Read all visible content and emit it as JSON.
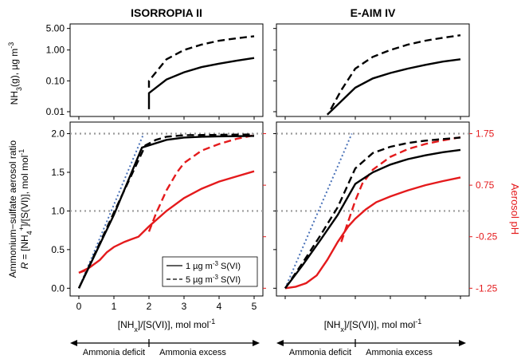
{
  "chart_data": [
    {
      "panel": "top-left",
      "type": "line",
      "title": "ISORROPIA II",
      "ylabel": "NH3(g), µg m-3",
      "yscale": "log",
      "xlim": [
        -0.25,
        5.25
      ],
      "ylim": [
        0.007,
        7
      ],
      "yticks": [
        "5.00",
        "1.00",
        "0.10",
        "0.01"
      ],
      "series": [
        {
          "name": "1 µg m-3 S(VI)",
          "style": "solid",
          "x": [
            2.0,
            2.0,
            2.5,
            3.0,
            3.5,
            4.0,
            4.5,
            5.0
          ],
          "y": [
            0.012,
            0.04,
            0.11,
            0.19,
            0.28,
            0.36,
            0.45,
            0.55
          ]
        },
        {
          "name": "5 µg m-3 S(VI)",
          "style": "dashed",
          "x": [
            2.0,
            2.0,
            2.5,
            3.0,
            3.5,
            4.0,
            4.5,
            5.0
          ],
          "y": [
            0.06,
            0.1,
            0.5,
            1.0,
            1.5,
            2.0,
            2.4,
            2.8
          ]
        }
      ]
    },
    {
      "panel": "top-right",
      "type": "line",
      "title": "E-AIM IV",
      "yscale": "log",
      "xlim": [
        -0.25,
        5.25
      ],
      "ylim": [
        0.007,
        7
      ],
      "series": [
        {
          "name": "1 µg m-3 S(VI)",
          "style": "solid",
          "x": [
            1.2,
            1.5,
            2.0,
            2.5,
            3.0,
            3.5,
            4.0,
            4.5,
            5.0
          ],
          "y": [
            0.008,
            0.017,
            0.06,
            0.12,
            0.18,
            0.25,
            0.33,
            0.42,
            0.5
          ]
        },
        {
          "name": "5 µg m-3 S(VI)",
          "style": "dashed",
          "x": [
            1.3,
            1.6,
            2.0,
            2.5,
            3.0,
            3.5,
            4.0,
            4.5,
            5.0
          ],
          "y": [
            0.012,
            0.05,
            0.25,
            0.6,
            1.0,
            1.5,
            2.0,
            2.5,
            3.0
          ]
        }
      ]
    },
    {
      "panel": "bottom-left",
      "type": "line",
      "xlabel": "[NHx]/[S(VI)], mol mol-1",
      "ylabel": "Ammonium-sulfate aerosol ratio R = [NH4+]/[S(VI)], mol mol-1",
      "xlim": [
        -0.25,
        5.25
      ],
      "ylim": [
        -0.1,
        2.15
      ],
      "xticks": [
        "0",
        "1",
        "2",
        "3",
        "4",
        "5"
      ],
      "yticks": [
        "0.0",
        "0.5",
        "1.0",
        "1.5",
        "2.0"
      ],
      "reference_lines": [
        1.0,
        2.0
      ],
      "ideal_line": {
        "x": [
          0,
          1.85
        ],
        "y": [
          0,
          2.0
        ]
      },
      "series": [
        {
          "name": "1 µg m-3 S(VI)",
          "style": "solid",
          "color": "#000000",
          "x": [
            0,
            1.0,
            1.8,
            2.5,
            3.0,
            3.5,
            4.0,
            5.0
          ],
          "y": [
            0,
            0.95,
            1.82,
            1.92,
            1.95,
            1.96,
            1.965,
            1.97
          ]
        },
        {
          "name": "5 µg m-3 S(VI)",
          "style": "dashed",
          "color": "#000000",
          "x": [
            0,
            1.0,
            1.9,
            2.2,
            2.5,
            3.0,
            4.0,
            5.0
          ],
          "y": [
            0,
            0.98,
            1.85,
            1.92,
            1.96,
            1.98,
            1.985,
            1.99
          ]
        }
      ],
      "pH_series": [
        {
          "name": "pH 1 µg m-3 S(VI)",
          "style": "solid",
          "color": "#e41a1c",
          "x": [
            0,
            0.3,
            0.6,
            0.8,
            1.0,
            1.3,
            1.5,
            1.7,
            2.0,
            2.5,
            3.0,
            3.5,
            4.0,
            4.5,
            5.0
          ],
          "y": [
            -0.95,
            -0.85,
            -0.7,
            -0.55,
            -0.45,
            -0.35,
            -0.3,
            -0.25,
            -0.05,
            0.25,
            0.5,
            0.68,
            0.82,
            0.92,
            1.02
          ]
        },
        {
          "name": "pH 5 µg m-3 S(VI)",
          "style": "dashed",
          "color": "#e41a1c",
          "x": [
            0,
            0.2,
            0.4
          ],
          "y": [
            -0.95,
            -0.9,
            -0.8
          ]
        },
        {
          "name": "pH 5 µg m-3 S(VI) upper",
          "style": "dashed",
          "color": "#e41a1c",
          "x": [
            2.0,
            2.2,
            2.5,
            2.8,
            3.0,
            3.5,
            4.0,
            4.5,
            5.0
          ],
          "y": [
            -0.15,
            0.2,
            0.65,
            1.0,
            1.18,
            1.42,
            1.55,
            1.65,
            1.72
          ]
        }
      ],
      "legend": [
        "1 µg m-3 S(VI)",
        "5 µg m-3 S(VI)"
      ],
      "legend_position": "bottom-right"
    },
    {
      "panel": "bottom-right",
      "type": "line",
      "xlabel": "[NHx]/[S(VI)], mol mol-1",
      "y2label": "Aerosol pH",
      "xlim": [
        -0.25,
        5.25
      ],
      "ylim": [
        -0.1,
        2.15
      ],
      "y2ticks": [
        "1.75",
        "0.75",
        "-0.25",
        "-1.25"
      ],
      "reference_lines": [
        1.0,
        2.0
      ],
      "ideal_line": {
        "x": [
          0,
          1.9
        ],
        "y": [
          0,
          2.0
        ]
      },
      "series": [
        {
          "name": "1 µg m-3 S(VI)",
          "style": "solid",
          "color": "#000000",
          "x": [
            0,
            0.5,
            1.0,
            1.5,
            2.0,
            2.5,
            3.0,
            3.5,
            4.0,
            4.5,
            5.0
          ],
          "y": [
            0,
            0.3,
            0.62,
            0.95,
            1.35,
            1.5,
            1.6,
            1.67,
            1.72,
            1.76,
            1.79
          ]
        },
        {
          "name": "5 µg m-3 S(VI)",
          "style": "dashed",
          "color": "#000000",
          "x": [
            0,
            0.5,
            1.0,
            1.5,
            2.0,
            2.5,
            3.0,
            3.5,
            4.0,
            4.5,
            5.0
          ],
          "y": [
            0,
            0.33,
            0.68,
            1.05,
            1.55,
            1.75,
            1.83,
            1.88,
            1.91,
            1.93,
            1.95
          ]
        }
      ],
      "pH_series": [
        {
          "name": "pH 1 µg m-3 S(VI)",
          "style": "solid",
          "color": "#e41a1c",
          "x": [
            0,
            0.3,
            0.6,
            0.9,
            1.2,
            1.5,
            1.8,
            2.0,
            2.3,
            2.6,
            3.0,
            3.5,
            4.0,
            4.5,
            5.0
          ],
          "y": [
            -1.25,
            -1.22,
            -1.15,
            -1.0,
            -0.7,
            -0.35,
            -0.05,
            0.1,
            0.28,
            0.42,
            0.53,
            0.65,
            0.75,
            0.83,
            0.9
          ]
        },
        {
          "name": "pH 5 µg m-3 S(VI)",
          "style": "dashed",
          "color": "#e41a1c",
          "x": [
            1.6,
            1.8,
            2.0,
            2.2,
            2.5,
            3.0,
            3.5,
            4.0,
            4.5,
            5.0
          ],
          "y": [
            -0.35,
            0.05,
            0.45,
            0.78,
            1.05,
            1.3,
            1.45,
            1.55,
            1.62,
            1.68
          ]
        }
      ]
    }
  ],
  "labels": {
    "title_left": "ISORROPIA II",
    "title_right": "E-AIM IV",
    "nh3_label": "NH",
    "nh3_sub": "3",
    "nh3_suffix": "(g), µg m",
    "nh3_sup": "-3",
    "yaxis_line1": "Ammonium−sulfate aerosol ratio",
    "yaxis_line2_R": "R",
    "yaxis_line2_rest": " = [NH",
    "yaxis_line2_sub": "4",
    "yaxis_line2_sup": "+",
    "yaxis_line2_end": "]/[S(VI)], mol mol",
    "yaxis_line2_exp": "-1",
    "xlabel_main": "[NH",
    "xlabel_sub": "x",
    "xlabel_rest": "]/[S(VI)], mol mol",
    "xlabel_exp": "-1",
    "ph_label": "Aerosol pH",
    "legend_1": "1 µg m",
    "legend_1_exp": "-3",
    "legend_1_end": " S(VI)",
    "legend_5": "5 µg m",
    "legend_5_exp": "-3",
    "legend_5_end": " S(VI)",
    "ammonia_deficit": "Ammonia deficit",
    "ammonia_excess": "Ammonia excess"
  },
  "colors": {
    "red": "#e41a1c",
    "blue_dotted": "#4a72b8",
    "grey_ref": "#9a9a9a"
  }
}
